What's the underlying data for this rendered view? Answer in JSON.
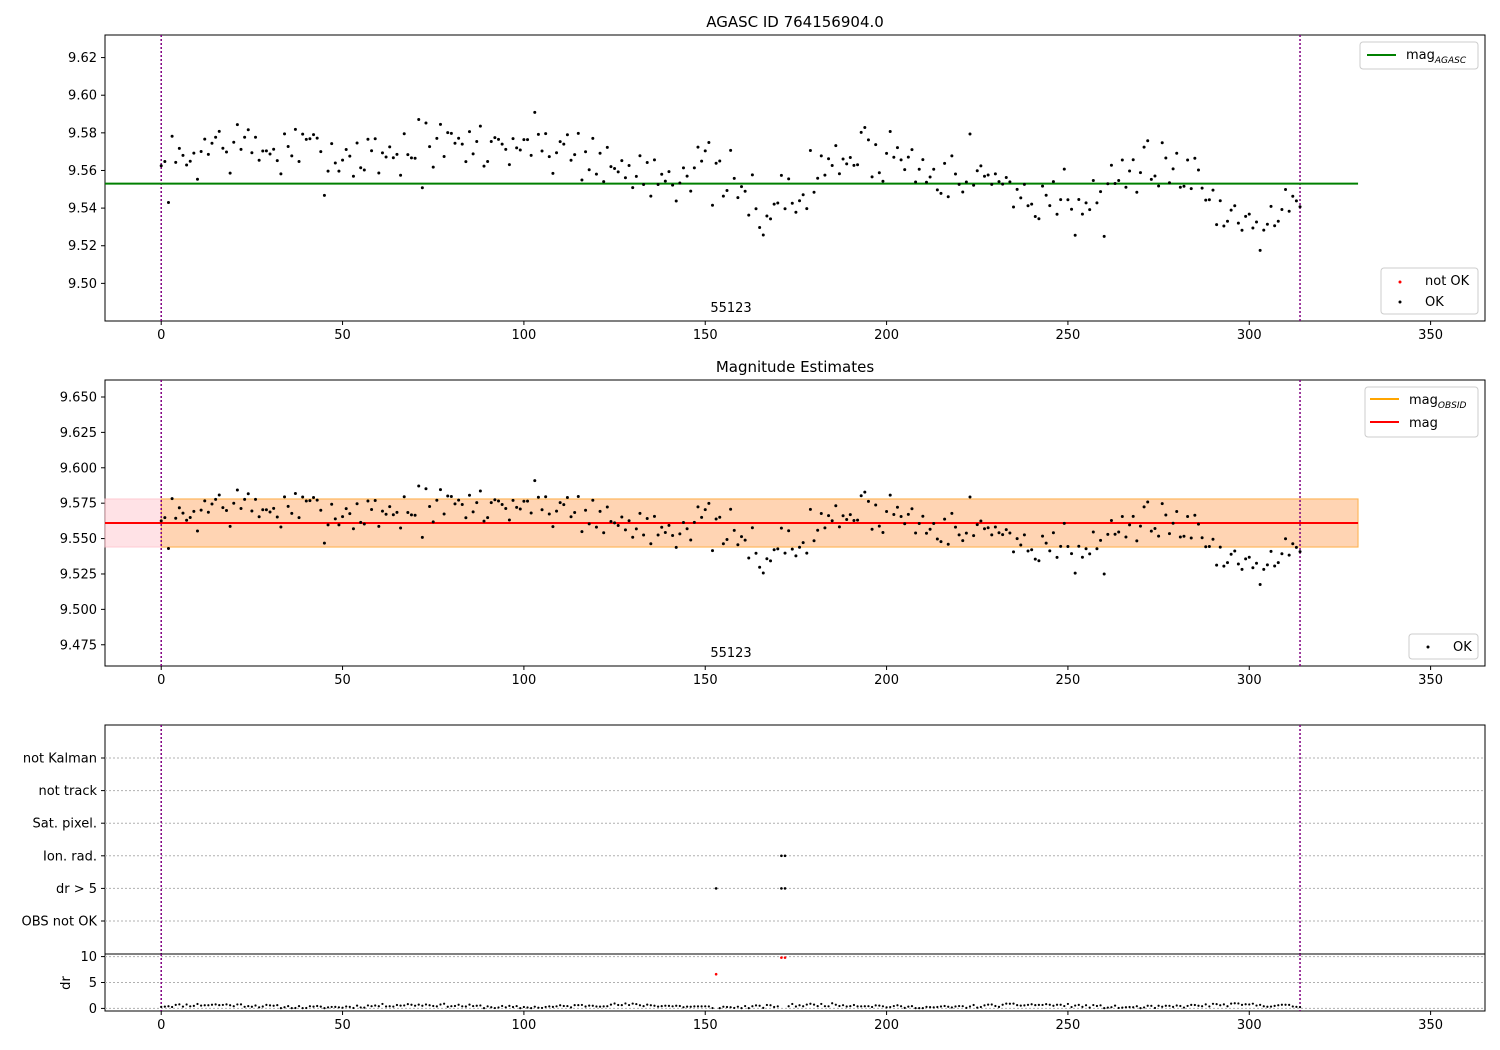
{
  "chart_data": [
    {
      "type": "scatter",
      "title": "AGASC ID 764156904.0",
      "xlim": [
        -15.5,
        365
      ],
      "ylim": [
        9.48,
        9.632
      ],
      "x_ticks": [
        0,
        50,
        100,
        150,
        200,
        250,
        300,
        350
      ],
      "y_ticks": [
        9.5,
        9.52,
        9.54,
        9.56,
        9.58,
        9.6,
        9.62
      ],
      "y_tick_decimals": 2,
      "obsid_label": "55123",
      "obsid_label_x": 157,
      "obs_boundaries": [
        0,
        314
      ],
      "hlines": [
        {
          "name": "mag",
          "subscript": "AGASC",
          "value": 9.553,
          "color": "#008000"
        }
      ],
      "series": [
        {
          "name": "OK",
          "color": "#000000",
          "noise_seed": 7,
          "points": 314
        }
      ],
      "legend_upper": {
        "position": "top-right",
        "entries": [
          {
            "label": "mag",
            "subscript": "AGASC",
            "color": "#008000"
          }
        ]
      },
      "legend_lower": {
        "position": "bottom-right",
        "entries": [
          {
            "label": "not OK",
            "color": "#ff0000"
          },
          {
            "label": "OK",
            "color": "#000000"
          }
        ]
      }
    },
    {
      "type": "scatter",
      "title": "Magnitude Estimates",
      "xlim": [
        -15.5,
        365
      ],
      "ylim": [
        9.46,
        9.662
      ],
      "x_ticks": [
        0,
        50,
        100,
        150,
        200,
        250,
        300,
        350
      ],
      "y_ticks": [
        9.475,
        9.5,
        9.525,
        9.55,
        9.575,
        9.6,
        9.625,
        9.65
      ],
      "y_tick_decimals": 3,
      "obsid_label": "55123",
      "obsid_label_x": 157,
      "obs_boundaries": [
        0,
        314
      ],
      "bands": [
        {
          "name": "mag band",
          "y0": 9.544,
          "y1": 9.578,
          "x0": -15.5,
          "x1": 330,
          "color": "#ffb6c1",
          "opacity": 0.4
        },
        {
          "name": "mag obsid band",
          "y0": 9.544,
          "y1": 9.578,
          "x0": 0,
          "x1": 330,
          "color": "#ffa500",
          "opacity": 0.22
        }
      ],
      "hlines": [
        {
          "name": "mag",
          "subscript": "OBSID",
          "value": 9.561,
          "color": "#ffa500",
          "x0": 0,
          "x1": 330
        },
        {
          "name": "mag",
          "value": 9.561,
          "color": "#ff0000",
          "x0": -15.5,
          "x1": 330
        }
      ],
      "series": [
        {
          "name": "OK",
          "color": "#000000",
          "noise_seed": 7,
          "points": 314
        }
      ],
      "legend_upper": {
        "position": "top-right",
        "entries": [
          {
            "label": "mag",
            "subscript": "OBSID",
            "color": "#ffa500"
          },
          {
            "label": "mag",
            "color": "#ff0000"
          }
        ]
      },
      "legend_lower": {
        "position": "bottom-right",
        "entries": [
          {
            "label": "OK",
            "color": "#000000"
          }
        ]
      }
    },
    {
      "type": "scatter",
      "xlim": [
        -15.5,
        365
      ],
      "categories": [
        "not Kalman",
        "not track",
        "Sat. pixel.",
        "Ion. rad.",
        "dr > 5",
        "OBS not OK"
      ],
      "obs_boundaries": [
        0,
        314
      ],
      "flag_points": [
        {
          "category": "Ion. rad.",
          "x": [
            171,
            172
          ]
        },
        {
          "category": "dr > 5",
          "x": [
            153,
            171,
            172
          ]
        }
      ]
    },
    {
      "type": "scatter",
      "xlim": [
        -15.5,
        365
      ],
      "ylim": [
        -0.5,
        10.5
      ],
      "ylabel": "dr",
      "y_ticks": [
        0,
        5,
        10
      ],
      "x_ticks": [
        0,
        50,
        100,
        150,
        200,
        250,
        300,
        350
      ],
      "obs_boundaries": [
        0,
        314
      ],
      "series": [
        {
          "name": "OK",
          "color": "#000000",
          "baseline": 0.45,
          "points": 314
        },
        {
          "name": "not OK",
          "color": "#ff0000",
          "x": [
            153,
            171,
            172
          ],
          "y": [
            6.6,
            9.8,
            9.8
          ]
        }
      ]
    }
  ]
}
